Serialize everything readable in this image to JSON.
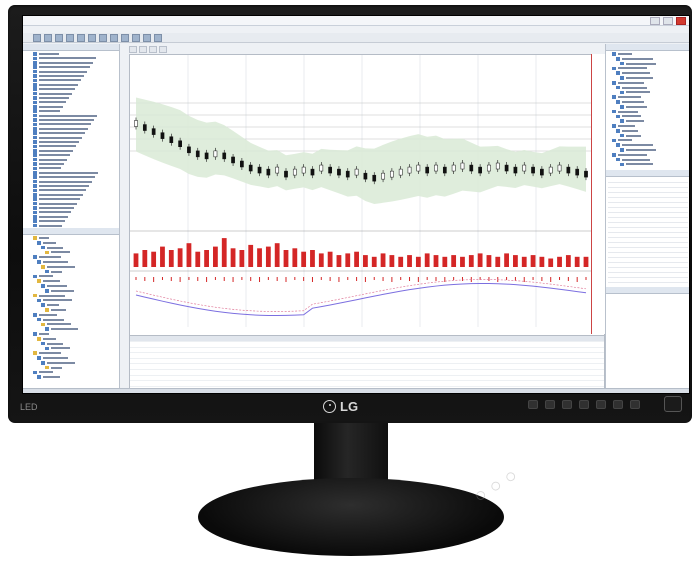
{
  "monitor": {
    "brand": "LG",
    "side_label": "LED",
    "controls": 7
  },
  "app": {
    "window_title": "",
    "colors": {
      "up_candle": "#ffffff",
      "down_candle": "#111111",
      "volume_bar": "#d42626",
      "band_fill": "#d9ead6",
      "macd_line": "#7c6fe0",
      "signal_line": "#e07b9a",
      "accent_axis": "#cc3333"
    }
  },
  "chart_data": {
    "type": "candlestick",
    "title": "",
    "candles_close": [
      0.6,
      0.58,
      0.56,
      0.54,
      0.52,
      0.5,
      0.47,
      0.45,
      0.44,
      0.45,
      0.44,
      0.42,
      0.4,
      0.38,
      0.37,
      0.36,
      0.37,
      0.35,
      0.36,
      0.37,
      0.36,
      0.38,
      0.37,
      0.36,
      0.35,
      0.36,
      0.34,
      0.33,
      0.34,
      0.35,
      0.36,
      0.37,
      0.38,
      0.37,
      0.38,
      0.37,
      0.38,
      0.39,
      0.38,
      0.37,
      0.38,
      0.39,
      0.38,
      0.37,
      0.38,
      0.37,
      0.36,
      0.37,
      0.38,
      0.37,
      0.36,
      0.35
    ],
    "volume": [
      0.4,
      0.5,
      0.45,
      0.6,
      0.5,
      0.55,
      0.7,
      0.45,
      0.5,
      0.6,
      0.85,
      0.55,
      0.5,
      0.65,
      0.55,
      0.6,
      0.7,
      0.5,
      0.55,
      0.45,
      0.5,
      0.4,
      0.45,
      0.35,
      0.4,
      0.45,
      0.35,
      0.3,
      0.4,
      0.35,
      0.3,
      0.35,
      0.3,
      0.4,
      0.35,
      0.3,
      0.35,
      0.3,
      0.35,
      0.4,
      0.35,
      0.3,
      0.4,
      0.35,
      0.3,
      0.35,
      0.3,
      0.25,
      0.3,
      0.35,
      0.3,
      0.3
    ]
  }
}
